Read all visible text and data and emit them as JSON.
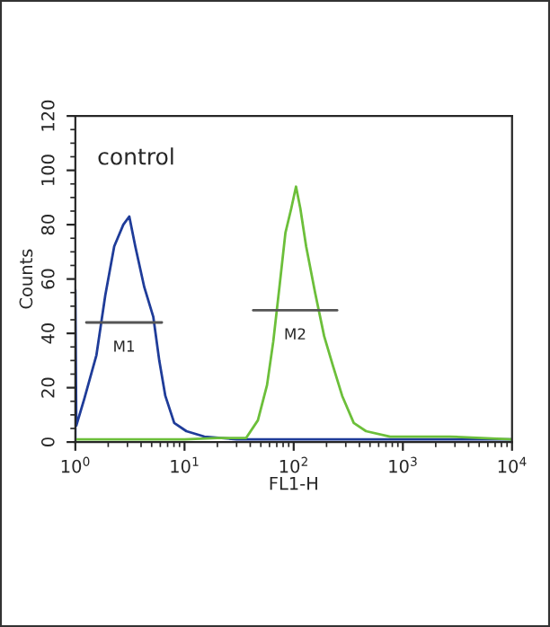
{
  "chart_data": {
    "type": "line",
    "xlabel": "FL1-H",
    "ylabel": "Counts",
    "log": "x",
    "xlim": [
      1,
      10000
    ],
    "ylim": [
      0,
      120
    ],
    "xticks": [
      {
        "value": 1,
        "label": "10$^{0}$"
      },
      {
        "value": 10,
        "label": "10$^{1}$"
      },
      {
        "value": 100,
        "label": "10$^{2}$"
      },
      {
        "value": 1000,
        "label": "10$^{3}$"
      },
      {
        "value": 10000,
        "label": "10$^{4}$"
      }
    ],
    "yticks": [
      0,
      20,
      40,
      60,
      80,
      100,
      120
    ],
    "grid": false,
    "legend": false,
    "series": [
      {
        "color": "#1f3c99",
        "x": [
          1.0,
          1.0,
          1.02,
          1.21,
          1.56,
          1.88,
          2.27,
          2.75,
          3.12,
          3.54,
          4.28,
          5.18,
          5.87,
          6.67,
          8.05,
          10.4,
          15.2,
          30,
          100,
          1000,
          10000
        ],
        "values": [
          0,
          56,
          6,
          16,
          32,
          54,
          72,
          80,
          83,
          72,
          57,
          46,
          30,
          17,
          7,
          4,
          2,
          1,
          1,
          1,
          1
        ]
      },
      {
        "color": "#6cbf3a",
        "x": [
          1.0,
          3,
          10,
          20,
          36.7,
          47,
          57,
          65,
          74,
          84,
          95,
          105,
          115,
          130,
          157,
          190,
          229,
          278,
          355,
          460,
          765,
          2700,
          10000
        ],
        "values": [
          1,
          1,
          1,
          1.5,
          1.5,
          8,
          21,
          37,
          57,
          77,
          86,
          94,
          86,
          72,
          55,
          39,
          28,
          17,
          7,
          4,
          2,
          2,
          1
        ]
      },
      {
        "color": "#555555",
        "x": [
          1.26,
          6.2
        ],
        "values": [
          44,
          44
        ]
      },
      {
        "color": "#555555",
        "x": [
          42.6,
          250
        ],
        "values": [
          48.5,
          48.5
        ]
      }
    ],
    "annotations": [
      "control",
      "M1",
      "M2"
    ]
  }
}
